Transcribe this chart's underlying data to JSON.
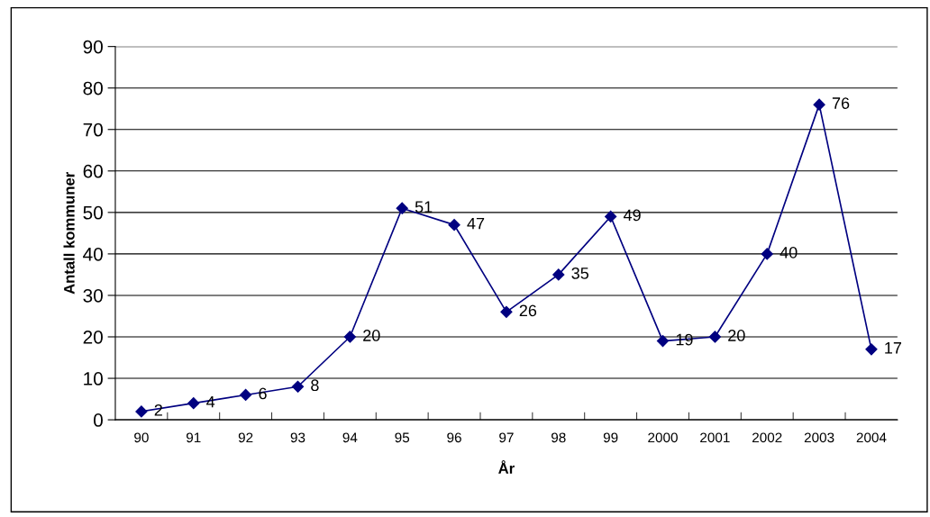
{
  "chart_data": {
    "type": "line",
    "xlabel": "År",
    "ylabel": "Antall kommuner",
    "categories": [
      "90",
      "91",
      "92",
      "93",
      "94",
      "95",
      "96",
      "97",
      "98",
      "99",
      "2000",
      "2001",
      "2002",
      "2003",
      "2004"
    ],
    "series": [
      {
        "color": "#000080",
        "values": [
          2,
          4,
          6,
          8,
          20,
          51,
          47,
          26,
          35,
          49,
          19,
          20,
          40,
          76,
          17
        ]
      }
    ],
    "ylim": [
      0,
      90
    ],
    "yticks": [
      0,
      10,
      20,
      30,
      40,
      50,
      60,
      70,
      80,
      90
    ],
    "grid": "y",
    "marker": "diamond",
    "line_style": "solid",
    "data_labels": true
  }
}
